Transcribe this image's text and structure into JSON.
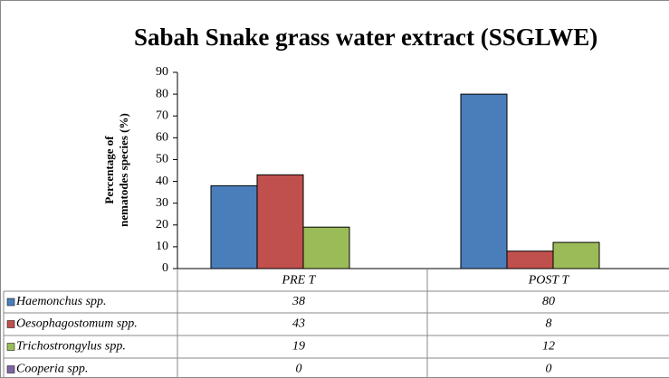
{
  "chart_data": {
    "type": "bar",
    "title": "Sabah Snake grass water extract (SSGLWE)",
    "y_label": [
      "Percentage of",
      "nematodes species (%)"
    ],
    "categories": [
      "PRE T",
      "POST T"
    ],
    "series": [
      {
        "name": "Haemonchus spp.",
        "color": "#4a7ebb",
        "values": [
          38,
          80
        ]
      },
      {
        "name": "Oesophagostomum spp.",
        "color": "#c0504d",
        "values": [
          43,
          8
        ]
      },
      {
        "name": "Trichostrongylus spp.",
        "color": "#9bbb59",
        "values": [
          19,
          12
        ]
      },
      {
        "name": "Cooperia spp.",
        "color": "#8064a2",
        "values": [
          0,
          0
        ]
      }
    ],
    "ylim": [
      0,
      90
    ],
    "yticks": [
      0,
      10,
      20,
      30,
      40,
      50,
      60,
      70,
      80,
      90
    ],
    "grid": false
  }
}
